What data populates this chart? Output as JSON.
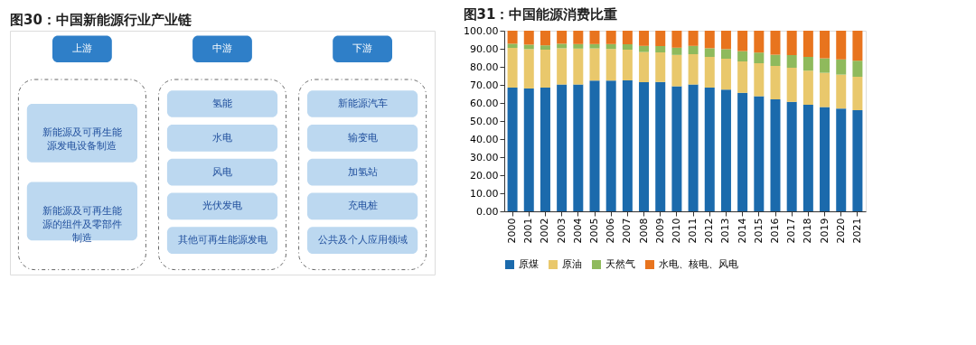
{
  "chart_data": [
    {
      "type": "other",
      "title": "图30：中国新能源行业产业链",
      "annotations": [
        "上游",
        "中游",
        "下游",
        "新能源及可再生能源发电设备制造",
        "新能源及可再生能源的组件及零部件制造",
        "氢能",
        "水电",
        "风电",
        "光伏发电",
        "其他可再生能源发电",
        "新能源汽车",
        "输变电",
        "加氢站",
        "充电桩",
        "公共及个人应用领域"
      ]
    },
    {
      "type": "bar",
      "title": "图31：中国能源消费比重",
      "stacked": true,
      "legend": "bottom",
      "categories": [
        "2000",
        "2001",
        "2002",
        "2003",
        "2004",
        "2005",
        "2006",
        "2007",
        "2008",
        "2009",
        "2010",
        "2011",
        "2012",
        "2013",
        "2014",
        "2015",
        "2016",
        "2017",
        "2018",
        "2019",
        "2020",
        "2021"
      ],
      "ylim": [
        0,
        100
      ],
      "yticks": [
        {
          "value": 0,
          "label": "0.00"
        },
        {
          "value": 10,
          "label": "10.00"
        },
        {
          "value": 20,
          "label": "20.00"
        },
        {
          "value": 30,
          "label": "30.00"
        },
        {
          "value": 40,
          "label": "40.00"
        },
        {
          "value": 50,
          "label": "50.00"
        },
        {
          "value": 60,
          "label": "60.00"
        },
        {
          "value": 70,
          "label": "70.00"
        },
        {
          "value": 80,
          "label": "80.00"
        },
        {
          "value": 90,
          "label": "90.00"
        },
        {
          "value": 100,
          "label": "100.00"
        }
      ],
      "grid": false,
      "series": [
        {
          "name": "原煤",
          "color": "#1b6aac",
          "values": [
            68.5,
            68.0,
            68.5,
            70.2,
            70.2,
            72.4,
            72.4,
            72.5,
            71.5,
            71.6,
            69.2,
            70.2,
            68.5,
            67.4,
            65.6,
            63.7,
            62.0,
            60.6,
            59.0,
            57.7,
            56.9,
            56.0
          ]
        },
        {
          "name": "原油",
          "color": "#e9c86c",
          "values": [
            22.0,
            21.8,
            21.0,
            20.1,
            19.9,
            17.8,
            17.5,
            17.0,
            16.7,
            16.4,
            17.4,
            16.8,
            17.0,
            17.1,
            17.4,
            18.3,
            18.5,
            18.9,
            18.9,
            19.0,
            18.8,
            18.5
          ]
        },
        {
          "name": "天然气",
          "color": "#8fba5c",
          "values": [
            2.3,
            2.5,
            2.4,
            2.5,
            2.5,
            2.4,
            2.7,
            3.0,
            3.4,
            3.5,
            4.0,
            4.6,
            4.8,
            5.3,
            5.7,
            5.9,
            6.2,
            7.0,
            7.6,
            8.0,
            8.4,
            8.9
          ]
        },
        {
          "name": "水电、核电、风电",
          "color": "#e8741e",
          "values": [
            7.2,
            7.7,
            8.1,
            7.2,
            7.4,
            7.4,
            7.4,
            7.5,
            8.4,
            8.5,
            9.4,
            8.4,
            9.7,
            10.2,
            11.3,
            12.1,
            13.3,
            13.5,
            14.5,
            15.3,
            15.9,
            16.6
          ]
        }
      ]
    }
  ]
}
